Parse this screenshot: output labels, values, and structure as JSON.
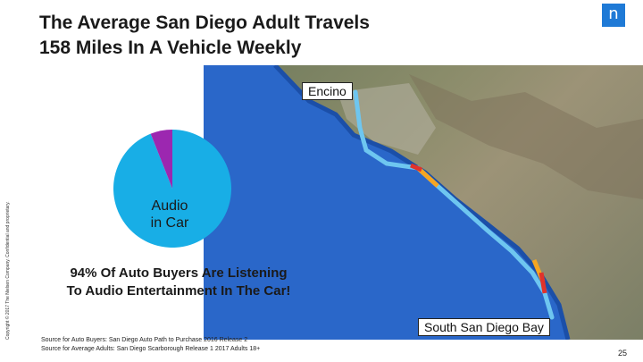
{
  "slide": {
    "title_line1": "The Average San Diego Adult Travels",
    "title_line2": "158 Miles In A Vehicle Weekly",
    "logo": "n",
    "map_label_top": "Encino",
    "map_label_bottom": "South San Diego Bay",
    "pie_label_line1": "Audio",
    "pie_label_line2": "in Car",
    "stat_line1": "94% Of Auto Buyers Are Listening",
    "stat_line2": "To Audio Entertainment In The Car!",
    "source_line1": "Source for Auto Buyers: San Diego Auto Path to Purchase 2016 Release 2",
    "source_line2": "Source for Average Adults: San Diego Scarborough Release 1 2017 Adults 18+",
    "copyright": "Copyright © 2017 The Nielsen Company. Confidential and proprietary.",
    "page_number": "25"
  },
  "pie": {
    "listening_share": 94,
    "other_share": 6,
    "listening_color": "#18aee6",
    "other_color": "#9c27b0"
  },
  "colors": {
    "ocean": "#2a67c9",
    "route": "#6ec6f0",
    "traffic_red": "#e0332b",
    "traffic_orange": "#f5a623",
    "logo_blue": "#1f7ad6"
  }
}
